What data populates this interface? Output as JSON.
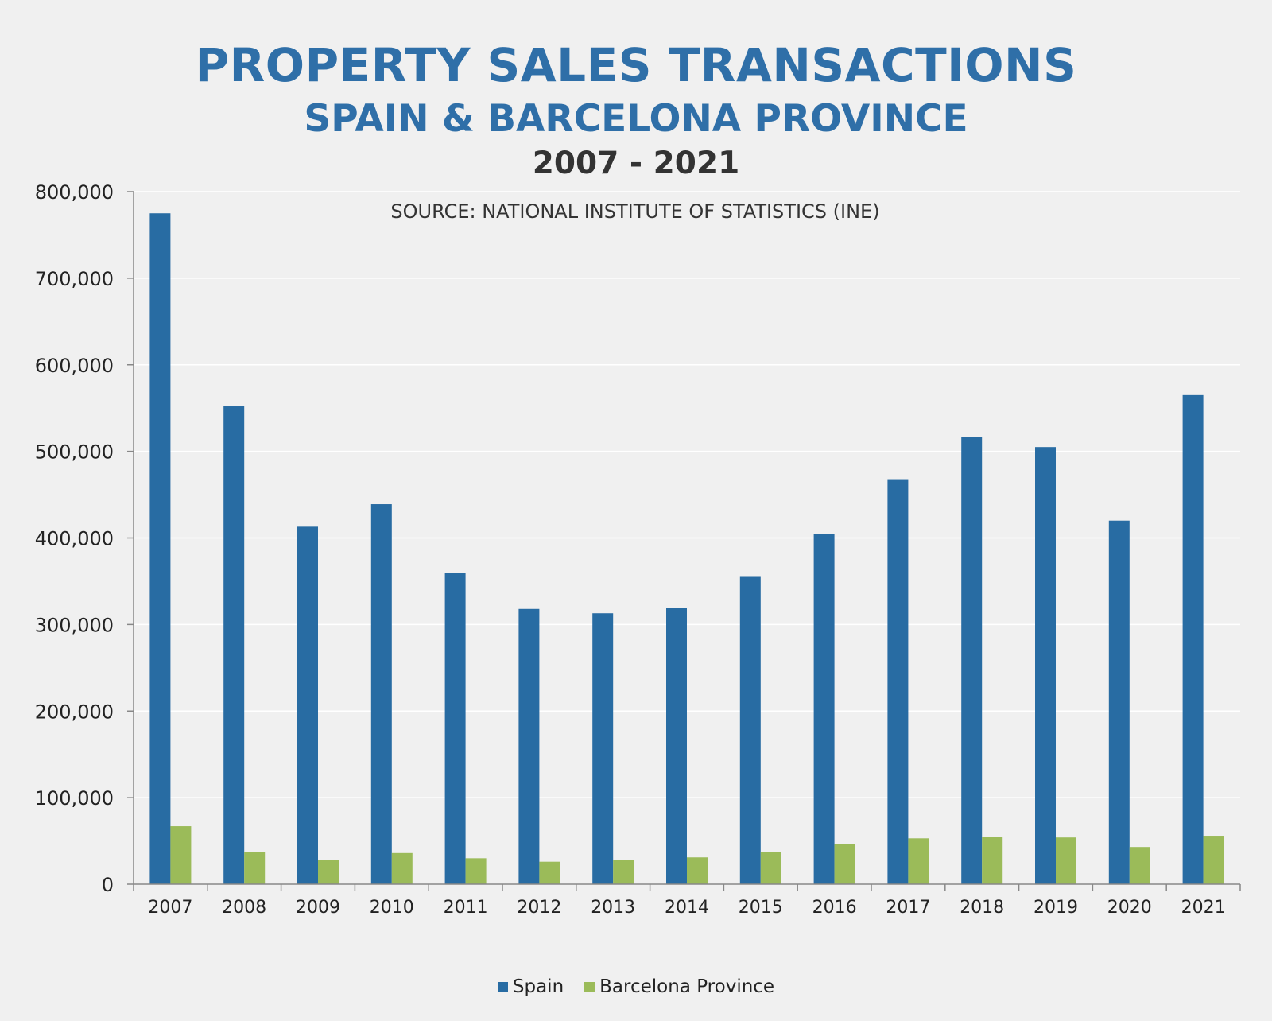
{
  "colors": {
    "title": "#2f6fa8",
    "years_text": "#333333",
    "spain": "#286ca3",
    "barcelona": "#9bbb59",
    "axis": "#888888",
    "grid": "#ffffff",
    "tick_text": "#222222"
  },
  "chart_data": {
    "type": "bar",
    "title": "PROPERTY SALES TRANSACTIONS",
    "subtitle": "SPAIN & BARCELONA PROVINCE",
    "period": "2007 - 2021",
    "annotation": "SOURCE: NATIONAL INSTITUTE OF STATISTICS (INE)",
    "categories": [
      "2007",
      "2008",
      "2009",
      "2010",
      "2011",
      "2012",
      "2013",
      "2014",
      "2015",
      "2016",
      "2017",
      "2018",
      "2019",
      "2020",
      "2021"
    ],
    "series": [
      {
        "name": "Spain",
        "color": "#286ca3",
        "values": [
          775000,
          552000,
          413000,
          439000,
          360000,
          318000,
          313000,
          319000,
          355000,
          405000,
          467000,
          517000,
          505000,
          420000,
          565000
        ]
      },
      {
        "name": "Barcelona Province",
        "color": "#9bbb59",
        "values": [
          67000,
          37000,
          28000,
          36000,
          30000,
          26000,
          28000,
          31000,
          37000,
          46000,
          53000,
          55000,
          54000,
          43000,
          56000
        ]
      }
    ],
    "ylim": [
      0,
      800000
    ],
    "yticks": [
      0,
      100000,
      200000,
      300000,
      400000,
      500000,
      600000,
      700000,
      800000
    ],
    "ytick_labels": [
      "0",
      "100,000",
      "200,000",
      "300,000",
      "400,000",
      "500,000",
      "600,000",
      "700,000",
      "800,000"
    ],
    "xlabel": "",
    "ylabel": "",
    "grid": true,
    "legend_position": "bottom-center"
  }
}
